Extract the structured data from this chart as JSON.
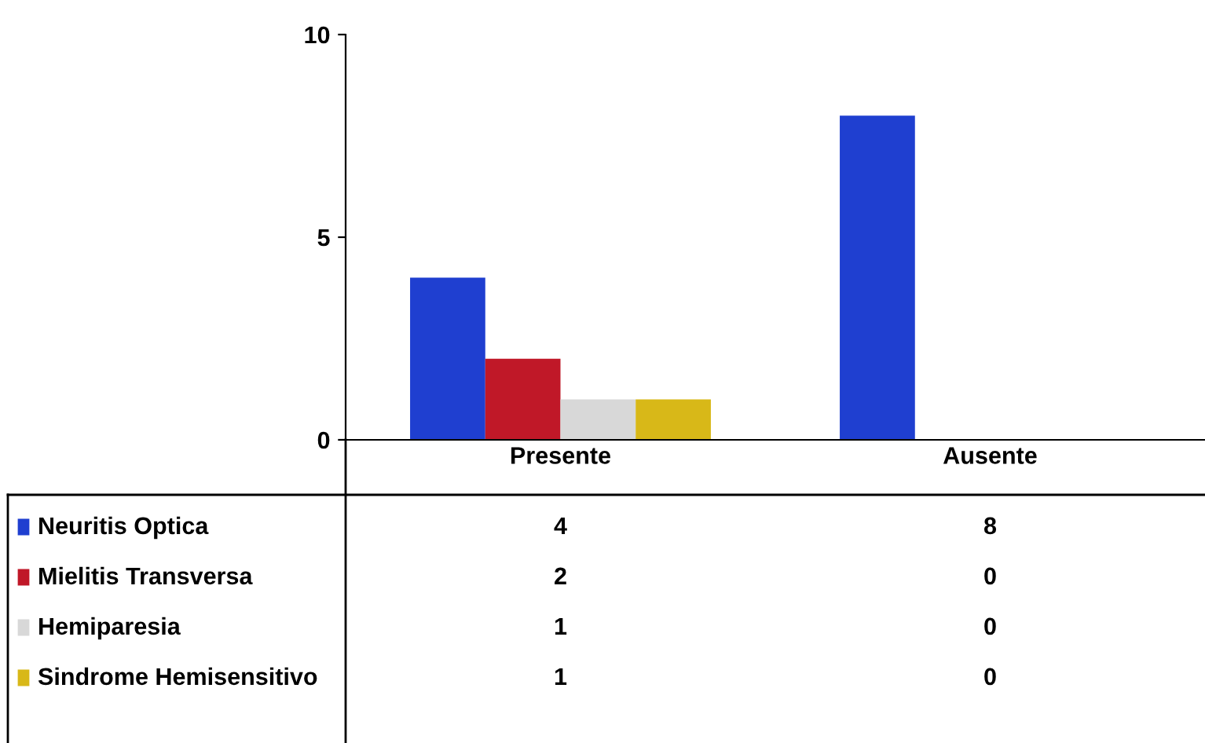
{
  "chart_data": {
    "type": "bar",
    "categories": [
      "Presente",
      "Ausente"
    ],
    "series": [
      {
        "name": "Neuritis Optica",
        "color": "#1f3fd0",
        "values": [
          4,
          8
        ]
      },
      {
        "name": "Mielitis Transversa",
        "color": "#c01828",
        "values": [
          2,
          0
        ]
      },
      {
        "name": "Hemiparesia",
        "color": "#d8d8d8",
        "values": [
          1,
          0
        ]
      },
      {
        "name": "Sindrome Hemisensitivo",
        "color": "#d8b818",
        "values": [
          1,
          0
        ]
      }
    ],
    "ylim": [
      0,
      10
    ],
    "yticks": [
      0,
      5,
      10
    ],
    "grid": false,
    "legend": "bottom left",
    "data_labels": true
  }
}
